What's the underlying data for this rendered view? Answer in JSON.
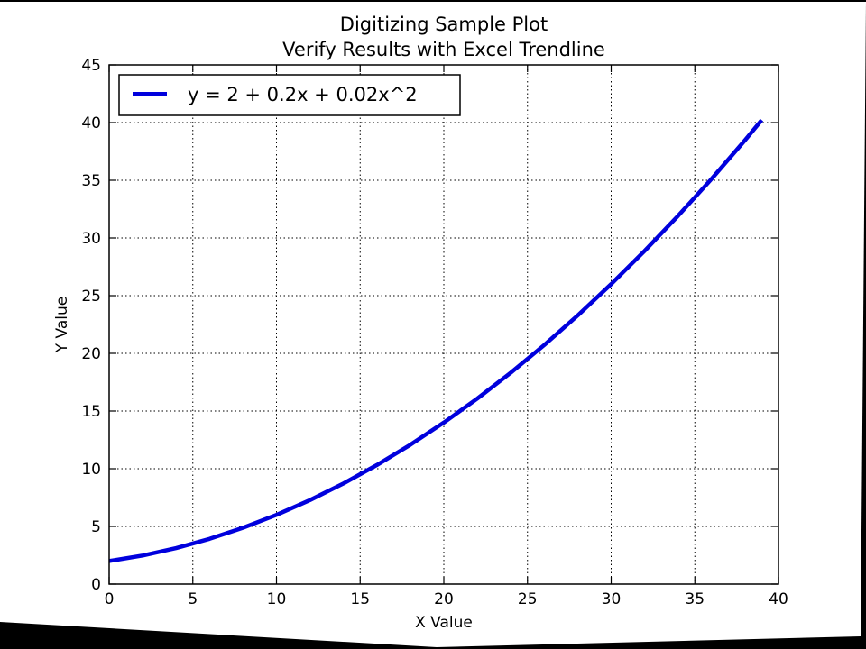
{
  "page": {
    "background": "#000000",
    "sheet_color": "#ffffff"
  },
  "chart_data": {
    "type": "line",
    "title": "Digitizing Sample Plot",
    "subtitle": "Verify Results with Excel Trendline",
    "xlabel": "X Value",
    "ylabel": "Y Value",
    "xlim": [
      0,
      40
    ],
    "ylim": [
      0,
      45
    ],
    "xticks": [
      0,
      5,
      10,
      15,
      20,
      25,
      30,
      35,
      40
    ],
    "yticks": [
      0,
      5,
      10,
      15,
      20,
      25,
      30,
      35,
      40,
      45
    ],
    "grid": true,
    "grid_style": "dotted",
    "legend": {
      "position": "top-left",
      "frame": true
    },
    "series": [
      {
        "name": "y = 2 + 0.2x + 0.02x^2",
        "color": "#0000dd",
        "x": [
          0,
          2,
          4,
          6,
          8,
          10,
          12,
          14,
          16,
          18,
          20,
          22,
          24,
          26,
          28,
          30,
          32,
          34,
          36,
          38,
          39
        ],
        "y": [
          2.0,
          2.48,
          3.12,
          3.92,
          4.88,
          6.0,
          7.28,
          8.72,
          10.32,
          12.08,
          14.0,
          16.08,
          18.32,
          20.72,
          23.28,
          26.0,
          28.88,
          31.92,
          35.12,
          38.48,
          40.22
        ]
      }
    ]
  }
}
